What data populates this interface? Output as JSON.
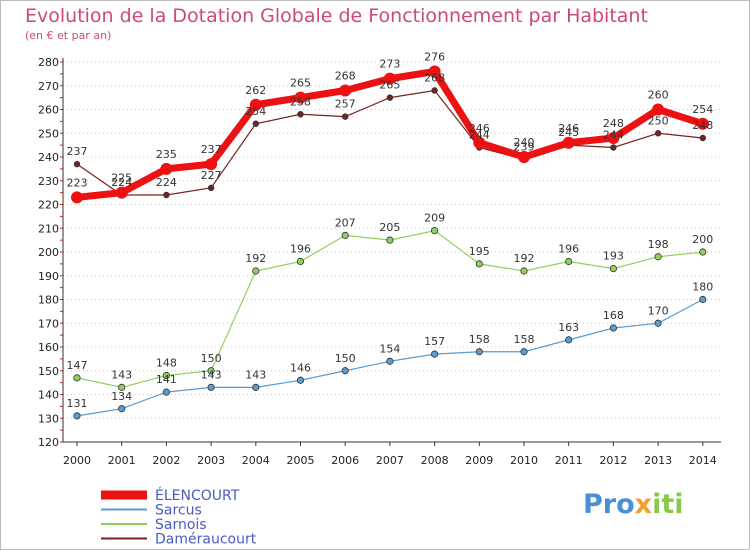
{
  "header": {
    "title": "Evolution de la Dotation Globale de Fonctionnement par Habitant",
    "subtitle": "(en € et par an)"
  },
  "logo": {
    "text": "Proxiti",
    "parts": [
      "Pro",
      "x",
      "iti"
    ]
  },
  "chart_data": {
    "type": "line",
    "title": "Evolution de la Dotation Globale de Fonctionnement par Habitant",
    "subtitle": "(en € et par an)",
    "x": [
      "2000",
      "2001",
      "2002",
      "2003",
      "2004",
      "2005",
      "2006",
      "2007",
      "2008",
      "2009",
      "2010",
      "2011",
      "2012",
      "2013",
      "2014"
    ],
    "ylim": [
      120,
      280
    ],
    "yticks": [
      120,
      130,
      140,
      150,
      160,
      170,
      180,
      190,
      200,
      210,
      220,
      230,
      240,
      250,
      260,
      270,
      280
    ],
    "grid": "horizontal-dotted",
    "legend_placement": "bottom-left",
    "series": [
      {
        "name": "Daméraucourt",
        "color": "#7a2020",
        "width": 1.2,
        "marker": 2.8,
        "values": [
          237,
          224,
          224,
          227,
          254,
          258,
          257,
          265,
          268,
          244,
          239,
          245,
          244,
          250,
          248
        ]
      },
      {
        "name": "Sarcus",
        "color": "#5a9bd0",
        "width": 1.2,
        "marker": 3.2,
        "values": [
          131,
          134,
          141,
          143,
          143,
          146,
          150,
          154,
          157,
          158,
          158,
          163,
          168,
          170,
          180
        ]
      },
      {
        "name": "Sarnois",
        "color": "#90d060",
        "width": 1.2,
        "marker": 3.2,
        "values": [
          147,
          143,
          148,
          150,
          192,
          196,
          207,
          205,
          209,
          195,
          192,
          196,
          193,
          198,
          200
        ]
      },
      {
        "name": "ÉLENCOURT",
        "color": "#ee1111",
        "width": 7,
        "marker": 6,
        "values": [
          223,
          225,
          235,
          237,
          262,
          265,
          268,
          273,
          276,
          246,
          240,
          246,
          248,
          260,
          254
        ]
      }
    ],
    "legend_order": [
      "ÉLENCOURT",
      "Sarcus",
      "Sarnois",
      "Daméraucourt"
    ]
  }
}
